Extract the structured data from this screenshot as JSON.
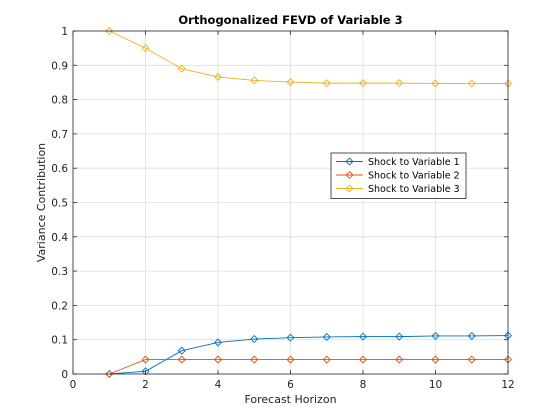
{
  "chart_data": {
    "type": "line",
    "title": "Orthogonalized FEVD of Variable 3",
    "xlabel": "Forecast Horizon",
    "ylabel": "Variance Contribution",
    "xlim": [
      0,
      12
    ],
    "ylim": [
      0,
      1
    ],
    "xticks": [
      0,
      2,
      4,
      6,
      8,
      10,
      12
    ],
    "yticks": [
      0,
      0.1,
      0.2,
      0.3,
      0.4,
      0.5,
      0.6,
      0.7,
      0.8,
      0.9,
      1
    ],
    "xtick_labels": [
      "0",
      "2",
      "4",
      "6",
      "8",
      "10",
      "12"
    ],
    "ytick_labels": [
      "0",
      "0.1",
      "0.2",
      "0.3",
      "0.4",
      "0.5",
      "0.6",
      "0.7",
      "0.8",
      "0.9",
      "1"
    ],
    "grid": true,
    "legend_position": "middle-right",
    "x": [
      1,
      2,
      3,
      4,
      5,
      6,
      7,
      8,
      9,
      10,
      11,
      12
    ],
    "series": [
      {
        "name": "Shock to Variable 1",
        "color": "#0072BD",
        "marker": "diamond",
        "values": [
          0,
          0.008,
          0.068,
          0.092,
          0.102,
          0.106,
          0.108,
          0.109,
          0.109,
          0.111,
          0.111,
          0.112
        ]
      },
      {
        "name": "Shock to Variable 2",
        "color": "#D95319",
        "marker": "diamond",
        "values": [
          0,
          0.042,
          0.042,
          0.042,
          0.042,
          0.042,
          0.042,
          0.042,
          0.042,
          0.042,
          0.042,
          0.042
        ]
      },
      {
        "name": "Shock to Variable 3",
        "color": "#EDB120",
        "marker": "diamond",
        "values": [
          1.0,
          0.95,
          0.89,
          0.866,
          0.856,
          0.851,
          0.848,
          0.848,
          0.848,
          0.847,
          0.847,
          0.847
        ]
      }
    ]
  }
}
